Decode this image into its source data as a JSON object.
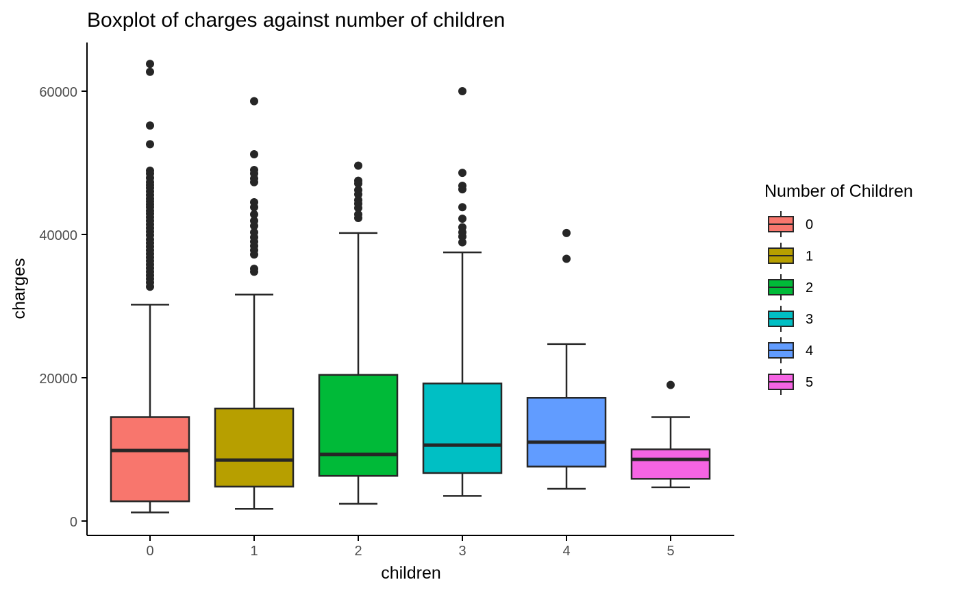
{
  "chart_data": {
    "type": "boxplot",
    "title": "Boxplot of charges against number of children",
    "xlabel": "children",
    "ylabel": "charges",
    "ylim": [
      -1500,
      66500
    ],
    "yticks": [
      0,
      20000,
      40000,
      60000
    ],
    "grid": false,
    "legend": {
      "title": "Number of Children",
      "position": "right"
    },
    "categories": [
      "0",
      "1",
      "2",
      "3",
      "4",
      "5"
    ],
    "colors": [
      "#F8766D",
      "#B79F00",
      "#00BA38",
      "#00BFC4",
      "#619CFF",
      "#F564E3"
    ],
    "boxes": [
      {
        "category": "0",
        "whisker_low": 1200,
        "q1": 2750,
        "median": 9850,
        "q3": 14500,
        "whisker_high": 30200,
        "outliers": [
          63800,
          62700,
          55200,
          52600,
          48900,
          48500,
          47900,
          47300,
          46900,
          46500,
          46000,
          45500,
          45000,
          44600,
          44200,
          43800,
          43300,
          42900,
          42400,
          41900,
          41400,
          40900,
          40400,
          39900,
          39300,
          38800,
          38300,
          37800,
          37300,
          36800,
          36300,
          35800,
          35300,
          34800,
          34300,
          33800,
          33300,
          32700
        ]
      },
      {
        "category": "1",
        "whisker_low": 1700,
        "q1": 4800,
        "median": 8500,
        "q3": 15700,
        "whisker_high": 31600,
        "outliers": [
          58600,
          51200,
          49000,
          48500,
          47800,
          47300,
          44500,
          43800,
          42800,
          41900,
          41200,
          40300,
          39600,
          39000,
          38400,
          37800,
          37200,
          35200,
          34800
        ]
      },
      {
        "category": "2",
        "whisker_low": 2400,
        "q1": 6300,
        "median": 9300,
        "q3": 20400,
        "whisker_high": 40200,
        "outliers": [
          49600,
          47500,
          47100,
          46200,
          45600,
          44800,
          44300,
          43700,
          42800,
          42300
        ]
      },
      {
        "category": "3",
        "whisker_low": 3500,
        "q1": 6700,
        "median": 10600,
        "q3": 19200,
        "whisker_high": 37500,
        "outliers": [
          60000,
          48600,
          46800,
          46300,
          43800,
          42200,
          41000,
          40300,
          39700,
          38900
        ]
      },
      {
        "category": "4",
        "whisker_low": 4500,
        "q1": 7600,
        "median": 11000,
        "q3": 17200,
        "whisker_high": 24700,
        "outliers": [
          40200,
          36600
        ]
      },
      {
        "category": "5",
        "whisker_low": 4700,
        "q1": 5900,
        "median": 8600,
        "q3": 10000,
        "whisker_high": 14500,
        "outliers": [
          19000
        ]
      }
    ]
  }
}
